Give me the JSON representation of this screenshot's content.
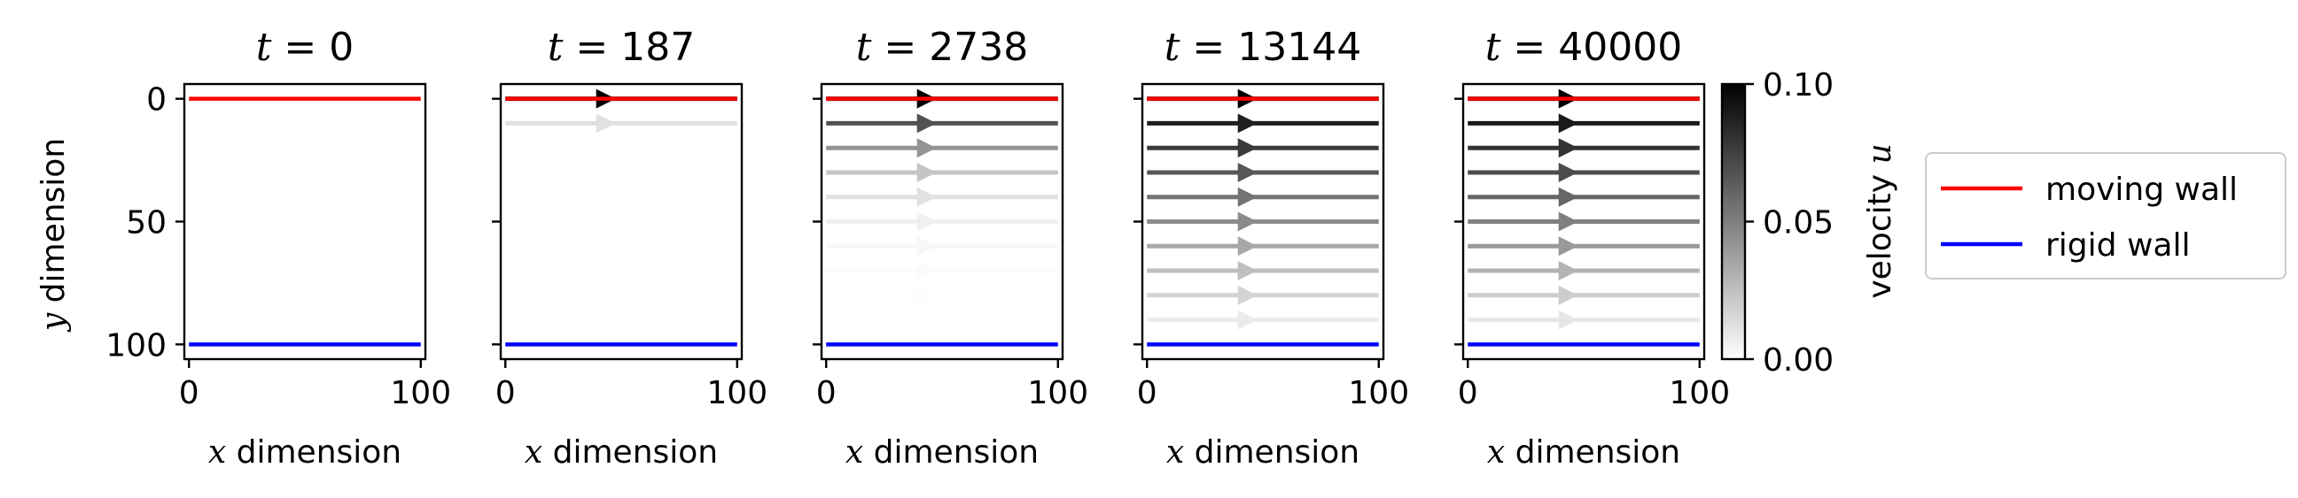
{
  "chart_data": {
    "type": "line",
    "description_layout": "5 panels side by side sharing y axis, colorbar and legend on right",
    "panels": [
      {
        "title_var": "t",
        "title_eq": " = ",
        "title_val": "0",
        "t": 0
      },
      {
        "title_var": "t",
        "title_eq": " = ",
        "title_val": "187",
        "t": 187
      },
      {
        "title_var": "t",
        "title_eq": " = ",
        "title_val": "2738",
        "t": 2738
      },
      {
        "title_var": "t",
        "title_eq": " = ",
        "title_val": "13144",
        "t": 13144
      },
      {
        "title_var": "t",
        "title_eq": " = ",
        "title_val": "40000",
        "t": 40000
      }
    ],
    "xlabel_var": "x",
    "xlabel_text": " dimension",
    "ylabel_var": "y",
    "ylabel_text": " dimension",
    "xlim": [
      -2,
      102
    ],
    "ylim": [
      106,
      -6
    ],
    "xticks": [
      0,
      100
    ],
    "xtick_labels": [
      "0",
      "100"
    ],
    "yticks": [
      0,
      50,
      100
    ],
    "ytick_labels": [
      "0",
      "50",
      "100"
    ],
    "walls": [
      {
        "name": "moving wall",
        "y": 0,
        "x": [
          0,
          100
        ],
        "color": "#ff0000"
      },
      {
        "name": "rigid wall",
        "y": 100,
        "x": [
          0,
          100
        ],
        "color": "#0000ff"
      }
    ],
    "streamline_y": [
      0,
      10,
      20,
      30,
      40,
      50,
      60,
      70,
      80,
      90
    ],
    "streamline_x": [
      0,
      100
    ],
    "arrow_x": 43,
    "velocity": [
      [
        0,
        0,
        0,
        0,
        0,
        0,
        0,
        0,
        0,
        0
      ],
      [
        0.1,
        0.012,
        0,
        0,
        0,
        0,
        0,
        0,
        0,
        0
      ],
      [
        0.1,
        0.068,
        0.042,
        0.023,
        0.012,
        0.006,
        0.003,
        0.0015,
        0.0008,
        0
      ],
      [
        0.1,
        0.088,
        0.077,
        0.066,
        0.055,
        0.045,
        0.034,
        0.025,
        0.017,
        0.008
      ],
      [
        0.1,
        0.09,
        0.08,
        0.07,
        0.06,
        0.05,
        0.04,
        0.03,
        0.02,
        0.01
      ]
    ],
    "colorbar": {
      "label_text": "velocity ",
      "label_var": "u",
      "min": 0.0,
      "max": 0.1,
      "ticks": [
        0.0,
        0.05,
        0.1
      ],
      "tick_labels": [
        "0.00",
        "0.05",
        "0.10"
      ],
      "cmap_from": "#ffffff",
      "cmap_to": "#000000"
    },
    "legend": {
      "placement": "right",
      "entries": [
        {
          "label": "moving wall",
          "color": "#ff0000"
        },
        {
          "label": "rigid wall",
          "color": "#0000ff"
        }
      ]
    }
  }
}
